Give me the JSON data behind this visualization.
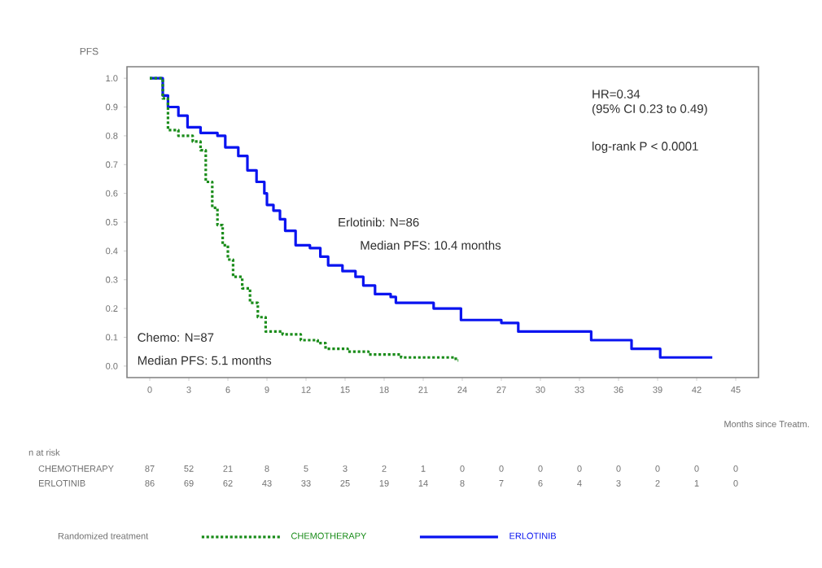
{
  "chart_data": {
    "type": "step",
    "ylabel": "PFS",
    "xlabel": "Months since Treatm.",
    "legend_title": "Randomized treatment",
    "legend": "bottom",
    "grid": false,
    "marker": "none",
    "xlim": [
      -1.75,
      46.75
    ],
    "ylim": [
      -0.04,
      1.04
    ],
    "xticks": [
      0,
      3,
      6,
      9,
      12,
      15,
      18,
      21,
      24,
      27,
      30,
      33,
      36,
      39,
      42,
      45
    ],
    "yticks": [
      {
        "value": 0,
        "label": "0.0"
      },
      {
        "value": 0.1,
        "label": "0.1"
      },
      {
        "value": 0.2,
        "label": "0.2"
      },
      {
        "value": 0.3,
        "label": "0.3"
      },
      {
        "value": 0.4,
        "label": "0.4"
      },
      {
        "value": 0.5,
        "label": "0.5"
      },
      {
        "value": 0.6,
        "label": "0.6"
      },
      {
        "value": 0.7,
        "label": "0.7"
      },
      {
        "value": 0.8,
        "label": "0.8"
      },
      {
        "value": 0.9,
        "label": "0.9"
      },
      {
        "value": 1,
        "label": "1.0"
      }
    ],
    "series": [
      {
        "name": "CHEMOTHERAPY",
        "color": "#1a8c1a",
        "line_style": "dashed",
        "x": [
          0,
          1.0,
          1.4,
          2.2,
          3.3,
          3.9,
          4.3,
          4.8,
          5.2,
          5.6,
          6.0,
          6.4,
          7.1,
          7.7,
          8.3,
          8.9,
          10.2,
          11.6,
          12.9,
          13.5,
          15.2,
          16.8,
          19.3,
          23.5,
          23.7
        ],
        "values": [
          1.0,
          0.93,
          0.82,
          0.8,
          0.78,
          0.75,
          0.64,
          0.55,
          0.49,
          0.42,
          0.37,
          0.31,
          0.27,
          0.22,
          0.17,
          0.12,
          0.11,
          0.09,
          0.08,
          0.06,
          0.05,
          0.04,
          0.03,
          0.02,
          0.02
        ]
      },
      {
        "name": "ERLOTINIB",
        "color": "#0a14f0",
        "line_style": "solid",
        "x": [
          0,
          1.0,
          1.4,
          2.2,
          2.9,
          3.9,
          5.2,
          5.8,
          6.8,
          7.5,
          8.2,
          8.8,
          9.0,
          9.5,
          10.0,
          10.4,
          11.2,
          12.3,
          13.1,
          13.7,
          14.8,
          15.8,
          16.4,
          17.3,
          18.5,
          18.9,
          21.8,
          23.9,
          27.0,
          28.3,
          33.9,
          37.0,
          39.2,
          43.2
        ],
        "values": [
          1.0,
          0.94,
          0.9,
          0.87,
          0.83,
          0.81,
          0.8,
          0.76,
          0.73,
          0.68,
          0.64,
          0.6,
          0.56,
          0.54,
          0.51,
          0.47,
          0.42,
          0.41,
          0.38,
          0.35,
          0.33,
          0.31,
          0.28,
          0.25,
          0.24,
          0.22,
          0.2,
          0.16,
          0.15,
          0.12,
          0.09,
          0.06,
          0.03,
          0.03
        ]
      }
    ],
    "annotations": [
      "HR=0.34",
      "(95% CI 0.23 to 0.49)",
      "log-rank P < 0.0001",
      "Erlotinib: N=86",
      "Median PFS: 10.4 months",
      "Chemo: N=87",
      "Median PFS: 5.1 months",
      "n at risk",
      "CHEMOTHERAPY",
      "87",
      "52",
      "21",
      "8",
      "5",
      "3",
      "2",
      "1",
      "0",
      "0",
      "0",
      "0",
      "0",
      "0",
      "0",
      "0",
      "ERLOTINIB",
      "86",
      "69",
      "62",
      "43",
      "33",
      "25",
      "19",
      "14",
      "8",
      "7",
      "6",
      "4",
      "3",
      "2",
      "1",
      "0"
    ]
  }
}
